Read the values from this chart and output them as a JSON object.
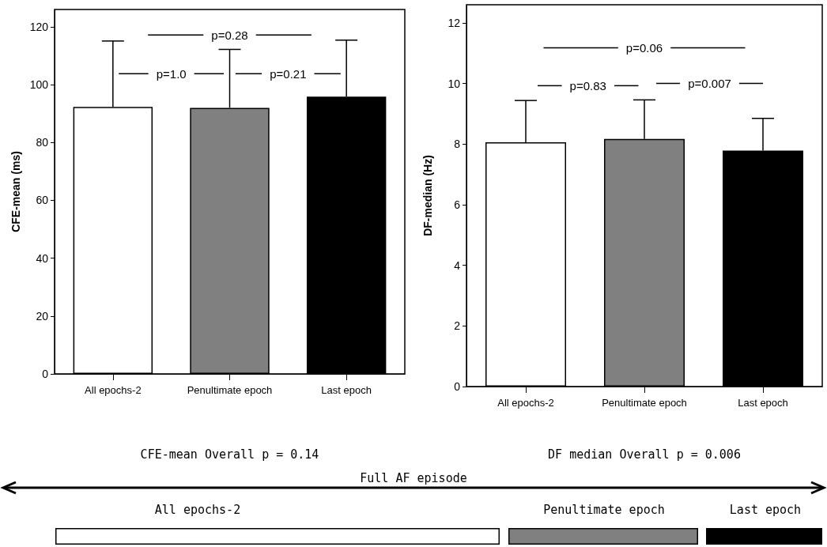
{
  "chart_data": [
    {
      "type": "bar",
      "ylabel": "CFE-mean (ms)",
      "categories": [
        "All epochs-2",
        "Penultimate epoch",
        "Last epoch"
      ],
      "values": [
        92.3,
        92.0,
        95.9
      ],
      "colors": [
        "#ffffff",
        "#808080",
        "#000000"
      ],
      "errors": [
        [
          92.3,
          115.1
        ],
        [
          92.0,
          112.2
        ],
        [
          95.9,
          115.4
        ]
      ],
      "ylim": [
        0,
        126
      ],
      "yticks": [
        0,
        20,
        40,
        60,
        80,
        100,
        120
      ],
      "annotations": [
        "p=0.28",
        "p=1.0",
        "p=0.21",
        "CFE-mean Overall p = 0.14"
      ]
    },
    {
      "type": "bar",
      "ylabel": "DF-median (Hz)",
      "categories": [
        "All epochs-2",
        "Penultimate epoch",
        "Last epoch"
      ],
      "values": [
        8.06,
        8.17,
        7.79
      ],
      "colors": [
        "#ffffff",
        "#808080",
        "#000000"
      ],
      "errors": [
        [
          8.06,
          9.44
        ],
        [
          8.17,
          9.46
        ],
        [
          7.79,
          8.85
        ]
      ],
      "ylim": [
        0,
        12.6
      ],
      "yticks": [
        0,
        2,
        4,
        6,
        8,
        10,
        12
      ],
      "annotations": [
        "p=0.06",
        "p=0.83",
        "p=0.007",
        "DF median Overall p = 0.006"
      ]
    },
    {
      "type": "other",
      "annotations": [
        "Full AF episode",
        "All epochs-2",
        "Penultimate epoch",
        "Last epoch"
      ]
    }
  ]
}
